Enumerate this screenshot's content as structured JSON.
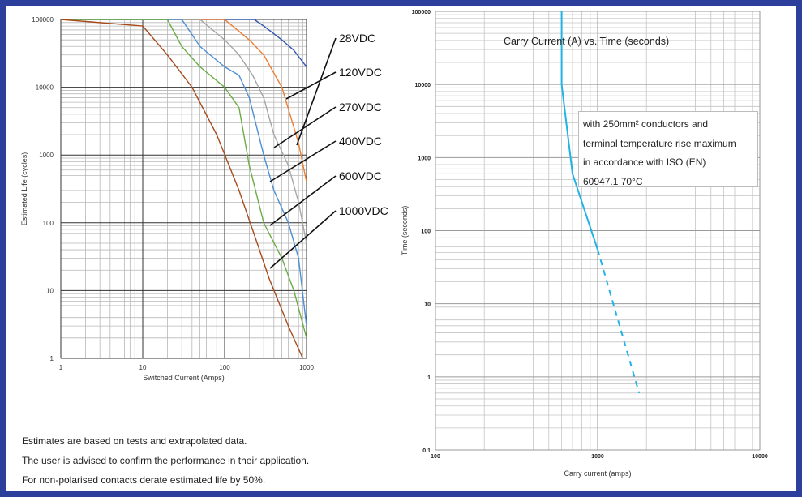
{
  "chart_data": [
    {
      "type": "line",
      "xlabel": "Switched Current (Amps)",
      "ylabel": "Estimated Life (cycles)",
      "x_scale": "log",
      "y_scale": "log",
      "xlim": [
        1,
        1000
      ],
      "ylim": [
        1,
        100000
      ],
      "xticks": [
        "1",
        "10",
        "100",
        "1000"
      ],
      "yticks": [
        "1",
        "10",
        "100",
        "1000",
        "10000",
        "100000"
      ],
      "grid": true,
      "series": [
        {
          "name": "28VDC",
          "color": "#2f56b0",
          "points": [
            [
              1,
              100000
            ],
            [
              230,
              100000
            ],
            [
              300,
              80000
            ],
            [
              500,
              50000
            ],
            [
              700,
              35000
            ],
            [
              1000,
              20000
            ]
          ]
        },
        {
          "name": "120VDC",
          "color": "#ee7d31",
          "points": [
            [
              1,
              100000
            ],
            [
              100,
              100000
            ],
            [
              200,
              50000
            ],
            [
              300,
              30000
            ],
            [
              500,
              10000
            ],
            [
              800,
              1500
            ],
            [
              1000,
              400
            ]
          ]
        },
        {
          "name": "270VDC",
          "color": "#a5a5a5",
          "points": [
            [
              1,
              100000
            ],
            [
              50,
              100000
            ],
            [
              100,
              50000
            ],
            [
              150,
              30000
            ],
            [
              220,
              15000
            ],
            [
              300,
              7000
            ],
            [
              400,
              2000
            ],
            [
              600,
              700
            ],
            [
              800,
              200
            ],
            [
              1000,
              50
            ]
          ]
        },
        {
          "name": "400VDC",
          "color": "#4d8fd4",
          "points": [
            [
              1,
              100000
            ],
            [
              30,
              100000
            ],
            [
              50,
              40000
            ],
            [
              100,
              20000
            ],
            [
              150,
              15000
            ],
            [
              200,
              7000
            ],
            [
              300,
              1000
            ],
            [
              400,
              300
            ],
            [
              600,
              100
            ],
            [
              800,
              30
            ],
            [
              1000,
              3
            ]
          ]
        },
        {
          "name": "600VDC",
          "color": "#6aac45",
          "points": [
            [
              1,
              100000
            ],
            [
              20,
              100000
            ],
            [
              30,
              40000
            ],
            [
              50,
              20000
            ],
            [
              100,
              10000
            ],
            [
              150,
              5000
            ],
            [
              200,
              700
            ],
            [
              300,
              100
            ],
            [
              500,
              30
            ],
            [
              700,
              10
            ],
            [
              1000,
              2
            ]
          ]
        },
        {
          "name": "1000VDC",
          "color": "#a64a1a",
          "points": [
            [
              1,
              100000
            ],
            [
              10,
              80000
            ],
            [
              20,
              30000
            ],
            [
              40,
              10000
            ],
            [
              80,
              2000
            ],
            [
              150,
              300
            ],
            [
              250,
              50
            ],
            [
              350,
              15
            ],
            [
              600,
              3
            ],
            [
              900,
              1
            ]
          ]
        }
      ]
    },
    {
      "type": "line",
      "title": "Carry Current (A) vs. Time (seconds)",
      "xlabel": "Carry current (amps)",
      "ylabel": "Time (seconds)",
      "x_scale": "log",
      "y_scale": "log",
      "xlim": [
        100,
        10000
      ],
      "ylim": [
        0.1,
        100000
      ],
      "xticks": [
        "100",
        "1000",
        "10000"
      ],
      "yticks": [
        "0.1",
        "1",
        "10",
        "100",
        "1000",
        "10000",
        "100000"
      ],
      "grid": true,
      "series": [
        {
          "name": "",
          "color": "#22b3e6",
          "style": "solid",
          "points": [
            [
              600,
              100000
            ],
            [
              600,
              10000
            ],
            [
              700,
              600
            ],
            [
              1000,
              55
            ]
          ]
        },
        {
          "name": "",
          "color": "#22b3e6",
          "style": "dashed",
          "points": [
            [
              1000,
              55
            ],
            [
              1800,
              0.6
            ]
          ]
        }
      ],
      "annotation": [
        "with 250mm² conductors and",
        "terminal temperature rise maximum",
        "in accordance with ISO (EN)",
        "60947.1 70°C"
      ]
    }
  ],
  "notes": [
    "Estimates are based on tests and extrapolated data.",
    "The user is advised to confirm the performance in their application.",
    "For non-polarised contacts derate estimated life by 50%."
  ]
}
